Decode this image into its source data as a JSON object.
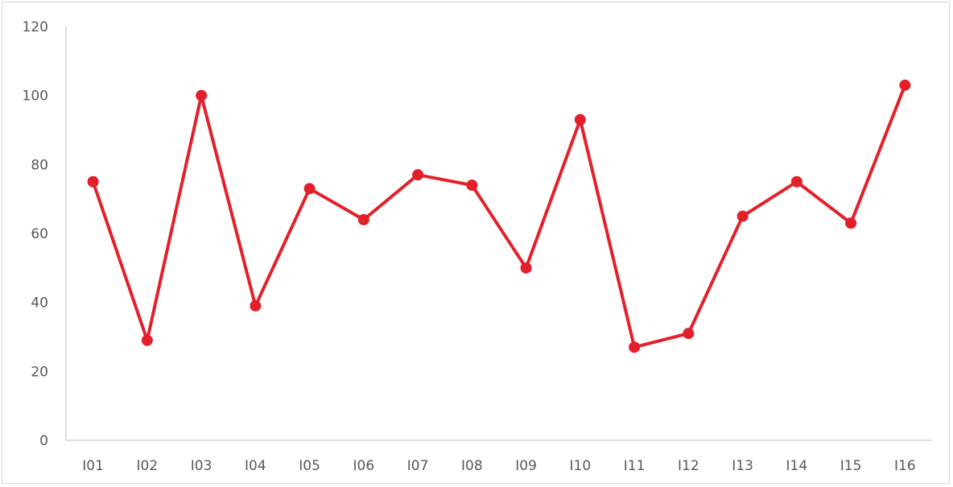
{
  "chart_data": {
    "type": "line",
    "categories": [
      "I01",
      "I02",
      "I03",
      "I04",
      "I05",
      "I06",
      "I07",
      "I08",
      "I09",
      "I10",
      "I11",
      "I12",
      "I13",
      "I14",
      "I15",
      "I16"
    ],
    "series": [
      {
        "values": [
          75,
          29,
          100,
          39,
          73,
          64,
          77,
          74,
          50,
          93,
          27,
          31,
          65,
          75,
          63,
          103
        ]
      }
    ],
    "ylim": [
      0,
      120
    ],
    "yticks": [
      "0",
      "20",
      "40",
      "60",
      "80",
      "100",
      "120"
    ],
    "grid": false,
    "legend": "none",
    "colors": {
      "series": "#e3202a",
      "axis": "#bfbfbf",
      "tick_text": "#595959"
    }
  }
}
